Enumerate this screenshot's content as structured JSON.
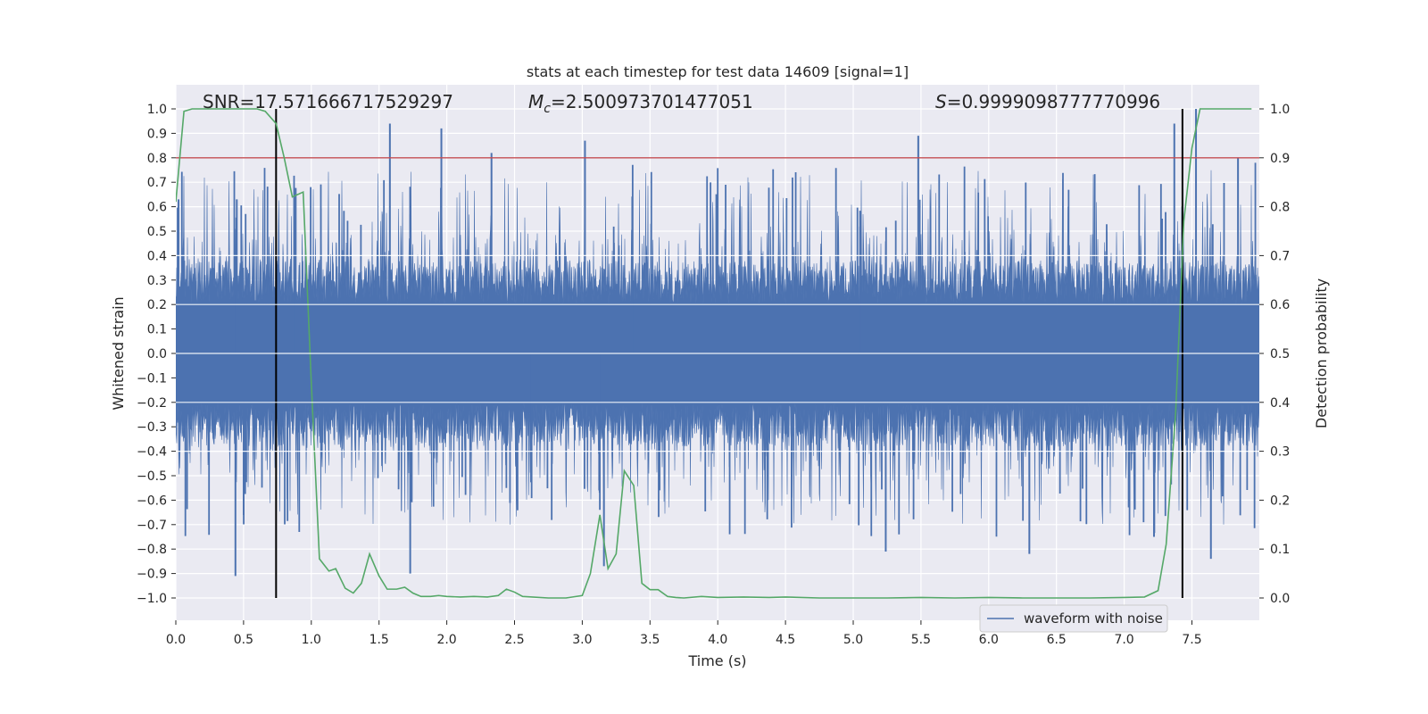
{
  "chart_data": {
    "type": "line",
    "title": "stats at each timestep for test data 14609 [signal=1]",
    "xlabel": "Time (s)",
    "ylabel": "Whitened strain",
    "y2label": "Detection probability",
    "xlim": [
      0,
      7.99
    ],
    "ylim": [
      -1.1,
      1.1
    ],
    "y2lim": [
      -0.05,
      1.05
    ],
    "grid": true,
    "x_ticks": [
      0.0,
      0.5,
      1.0,
      1.5,
      2.0,
      2.5,
      3.0,
      3.5,
      4.0,
      4.5,
      5.0,
      5.5,
      6.0,
      6.5,
      7.0,
      7.5
    ],
    "x_tick_labels": [
      "0.0",
      "0.5",
      "1.0",
      "1.5",
      "2.0",
      "2.5",
      "3.0",
      "3.5",
      "4.0",
      "4.5",
      "5.0",
      "5.5",
      "6.0",
      "6.5",
      "7.0",
      "7.5"
    ],
    "y_ticks": [
      -1.0,
      -0.9,
      -0.8,
      -0.7,
      -0.6,
      -0.5,
      -0.4,
      -0.3,
      -0.2,
      -0.1,
      0.0,
      0.1,
      0.2,
      0.3,
      0.4,
      0.5,
      0.6,
      0.7,
      0.8,
      0.9,
      1.0
    ],
    "y_tick_labels": [
      "−1.0",
      "−0.9",
      "−0.8",
      "−0.7",
      "−0.6",
      "−0.5",
      "−0.4",
      "−0.3",
      "−0.2",
      "−0.1",
      "0.0",
      "0.1",
      "0.2",
      "0.3",
      "0.4",
      "0.5",
      "0.6",
      "0.7",
      "0.8",
      "0.9",
      "1.0"
    ],
    "y2_ticks": [
      0.0,
      0.1,
      0.2,
      0.3,
      0.4,
      0.5,
      0.6,
      0.7,
      0.8,
      0.9,
      1.0
    ],
    "y2_tick_labels": [
      "0.0",
      "0.1",
      "0.2",
      "0.3",
      "0.4",
      "0.5",
      "0.6",
      "0.7",
      "0.8",
      "0.9",
      "1.0"
    ],
    "annotations": {
      "snr": "SNR=17.571666717529297",
      "mc_symbol": "M",
      "mc_sub": "c",
      "mc_value": "=2.500973701477051",
      "s_symbol": "S",
      "s_value": "=0.9999098777770996"
    },
    "legend": {
      "label": "waveform with noise",
      "placement": "lower-right"
    },
    "colors": {
      "waveform": "#4c72b0",
      "probability": "#55a868",
      "threshold": "#c44e52",
      "markers": "#000000",
      "plot_bg": "#eaeaf2",
      "grid": "#ffffff"
    },
    "waveform": {
      "name": "waveform with noise",
      "description_note": "dense noisy whitened strain, core roughly within -0.2..0.2 with spikes up to about 0.94 and down to about -0.91",
      "notable_peaks": [
        {
          "x": 0.02,
          "y": 0.63
        },
        {
          "x": 0.45,
          "y": 0.63
        },
        {
          "x": 1.58,
          "y": 0.94
        },
        {
          "x": 1.96,
          "y": 0.92
        },
        {
          "x": 2.33,
          "y": 0.82
        },
        {
          "x": 3.02,
          "y": 0.87
        },
        {
          "x": 5.48,
          "y": 0.89
        },
        {
          "x": 7.37,
          "y": 0.94
        },
        {
          "x": 7.53,
          "y": 1.0
        },
        {
          "x": 7.84,
          "y": 0.8
        }
      ],
      "notable_troughs": [
        {
          "x": 0.44,
          "y": -0.91
        },
        {
          "x": 1.73,
          "y": -0.9
        },
        {
          "x": 3.16,
          "y": -0.87
        },
        {
          "x": 5.24,
          "y": -0.81
        },
        {
          "x": 6.3,
          "y": -0.82
        },
        {
          "x": 7.64,
          "y": -0.84
        },
        {
          "x": 7.22,
          "y": -0.75
        }
      ]
    },
    "probability": {
      "name": "detection probability",
      "x": [
        0.0,
        0.06,
        0.12,
        0.2,
        0.3,
        0.4,
        0.5,
        0.6,
        0.66,
        0.74,
        0.8,
        0.86,
        0.94,
        1.0,
        1.06,
        1.13,
        1.18,
        1.25,
        1.31,
        1.37,
        1.43,
        1.5,
        1.56,
        1.63,
        1.69,
        1.75,
        1.81,
        1.88,
        1.94,
        2.0,
        2.1,
        2.2,
        2.3,
        2.38,
        2.44,
        2.5,
        2.56,
        2.63,
        2.75,
        2.88,
        3.0,
        3.06,
        3.13,
        3.19,
        3.25,
        3.31,
        3.38,
        3.44,
        3.5,
        3.56,
        3.63,
        3.69,
        3.75,
        3.88,
        4.0,
        4.19,
        4.38,
        4.5,
        4.75,
        5.0,
        5.25,
        5.5,
        5.75,
        6.0,
        6.25,
        6.5,
        6.75,
        7.0,
        7.15,
        7.25,
        7.31,
        7.38,
        7.44,
        7.5,
        7.56,
        7.63,
        7.75,
        7.94
      ],
      "y": [
        0.81,
        0.995,
        1.0,
        1.0,
        1.0,
        1.0,
        1.0,
        1.0,
        0.995,
        0.97,
        0.9,
        0.82,
        0.83,
        0.44,
        0.08,
        0.055,
        0.06,
        0.02,
        0.01,
        0.03,
        0.09,
        0.045,
        0.018,
        0.018,
        0.022,
        0.01,
        0.003,
        0.003,
        0.005,
        0.003,
        0.002,
        0.003,
        0.002,
        0.005,
        0.018,
        0.012,
        0.003,
        0.002,
        0.0,
        0.0,
        0.005,
        0.05,
        0.17,
        0.06,
        0.09,
        0.26,
        0.23,
        0.03,
        0.017,
        0.017,
        0.003,
        0.001,
        0.0,
        0.003,
        0.001,
        0.002,
        0.001,
        0.002,
        0.0,
        0.0,
        0.0,
        0.001,
        0.0,
        0.001,
        0.0,
        0.0,
        0.0,
        0.001,
        0.002,
        0.015,
        0.11,
        0.38,
        0.77,
        0.92,
        1.0,
        1.0,
        1.0,
        1.0
      ]
    },
    "threshold": {
      "y": 0.8
    },
    "markers": {
      "x": [
        0.74,
        7.43
      ]
    }
  }
}
